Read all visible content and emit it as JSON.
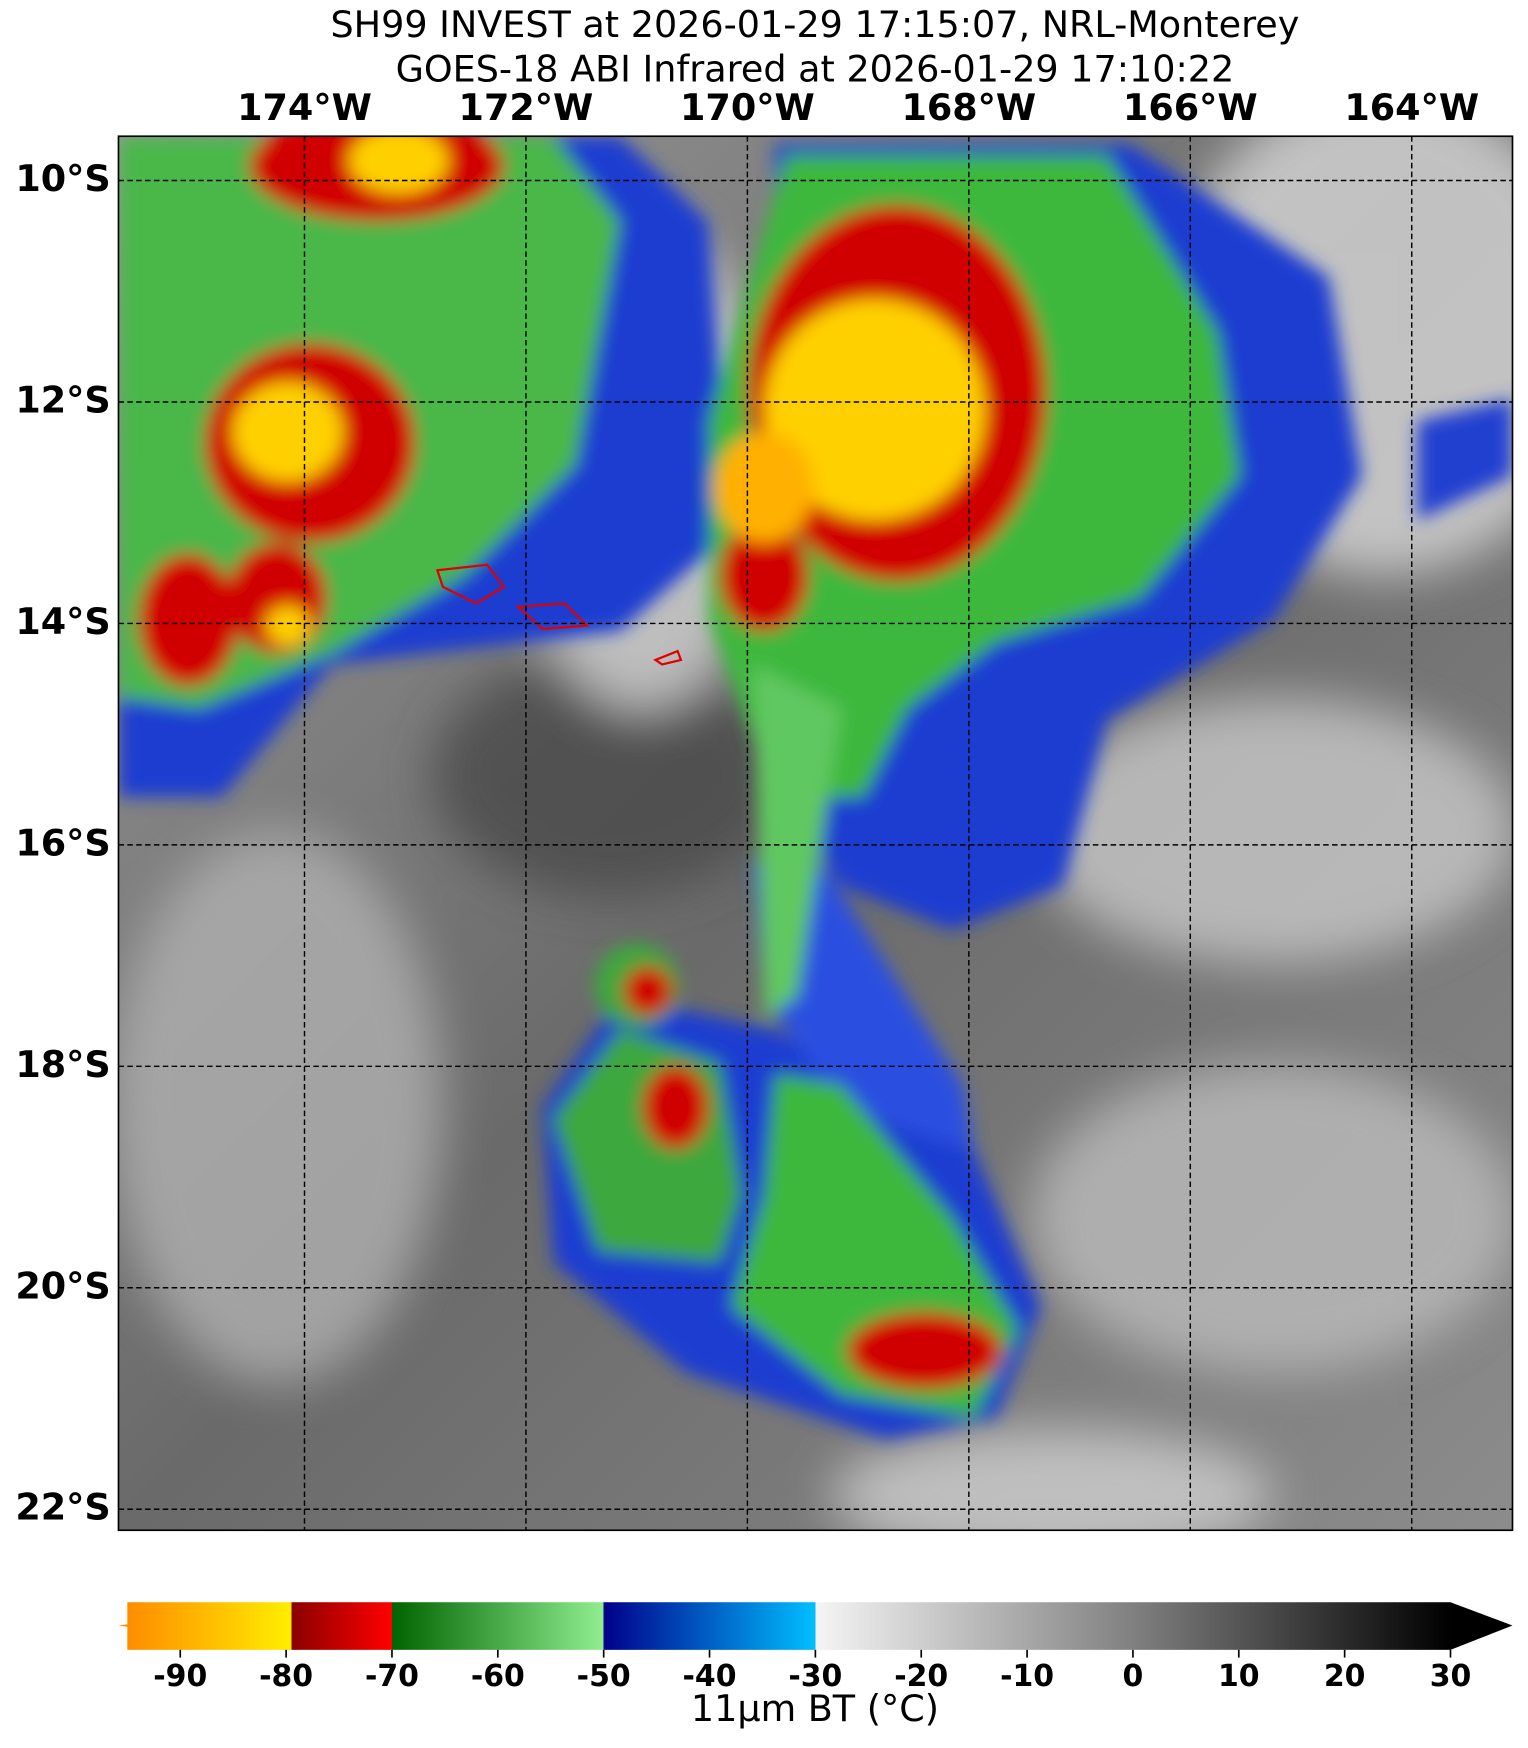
{
  "title": [
    "SH99 INVEST at 2026-01-29 17:15:07, NRL-Monterey",
    "GOES-18 ABI Infrared at 2026-01-29 17:10:22"
  ],
  "map": {
    "lonlim": [
      -175.68,
      -163.09
    ],
    "latlim": [
      -9.6,
      -22.19
    ],
    "lonticks": [
      {
        "value": -174,
        "label": "174°W"
      },
      {
        "value": -172,
        "label": "172°W"
      },
      {
        "value": -170,
        "label": "170°W"
      },
      {
        "value": -168,
        "label": "168°W"
      },
      {
        "value": -166,
        "label": "166°W"
      },
      {
        "value": -164,
        "label": "164°W"
      }
    ],
    "latticks": [
      {
        "value": -10,
        "label": "10°S"
      },
      {
        "value": -12,
        "label": "12°S"
      },
      {
        "value": -14,
        "label": "14°S"
      },
      {
        "value": -16,
        "label": "16°S"
      },
      {
        "value": -18,
        "label": "18°S"
      },
      {
        "value": -20,
        "label": "20°S"
      },
      {
        "value": -22,
        "label": "22°S"
      }
    ],
    "grid": true
  },
  "colorbar": {
    "label": "11μm BT (°C)",
    "range": [
      -95,
      30
    ],
    "ticks": [
      -90,
      -80,
      -70,
      -60,
      -50,
      -40,
      -30,
      -20,
      -10,
      0,
      10,
      20,
      30
    ]
  }
}
